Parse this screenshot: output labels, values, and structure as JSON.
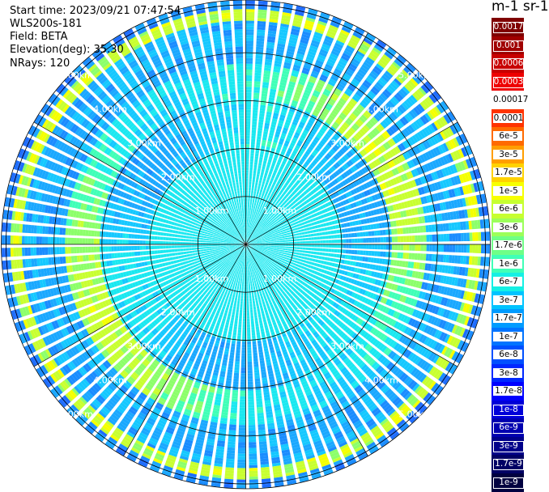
{
  "header": {
    "start_time": "Start time: 2023/09/21 07:47:54",
    "instrument": "WLS200s-181",
    "field": "Field: BETA",
    "elevation": "Elevation(deg): 35.30",
    "nrays": "NRays: 120"
  },
  "colorbar": {
    "unit": "m-1 sr-1",
    "labels": [
      "0.0017",
      "0.001",
      "0.0006",
      "0.0003",
      "0.00017",
      "0.0001",
      "6e-5",
      "3e-5",
      "1.7e-5",
      "1e-5",
      "6e-6",
      "3e-6",
      "1.7e-6",
      "1e-6",
      "6e-7",
      "3e-7",
      "1.7e-7",
      "1e-7",
      "6e-8",
      "3e-8",
      "1.7e-8",
      "1e-8",
      "6e-9",
      "3e-9",
      "1.7e-9",
      "1e-9"
    ],
    "colors": [
      "#7f0000",
      "#a00000",
      "#c80000",
      "#ee0000",
      "#ffffff",
      "#ff3300",
      "#ff6a00",
      "#ff9e00",
      "#ffd200",
      "#f7ff00",
      "#c6ff30",
      "#9cff5a",
      "#6fff87",
      "#40ffb7",
      "#15f0e4",
      "#00c4ff",
      "#009cff",
      "#0074ff",
      "#0050ff",
      "#0028ff",
      "#0000ff",
      "#0000d8",
      "#0000b0",
      "#00008a",
      "#000064",
      "#000040"
    ]
  },
  "chart_data": {
    "type": "heatmap",
    "projection": "polar (PPI scan)",
    "nrays": 120,
    "range_rings_labels": [
      "1.00km",
      "2.00km",
      "3.00km",
      "4.00km",
      "5.00km"
    ],
    "range_rings_km": [
      1,
      2,
      3,
      4,
      5
    ],
    "max_range_km": 5.1,
    "field": "BETA",
    "elevation_deg": 35.3,
    "pattern_description_km": {
      "inner_disk_0_to_2": "cyan, approx 1e-6",
      "ring_2_to_3": "patchy light-blue / green, approx 3e-7 to 3e-6",
      "ring_3_to_3.7": "green / yellow patches, approx 6e-6 to 1.7e-5",
      "ring_4_to_4.6": "cyan / light-blue, approx 1.7e-7 to 1e-6",
      "ring_4.7_to_4.85": "yellow band, approx 1.7e-5",
      "edge": "blue, approx 1e-7"
    }
  }
}
